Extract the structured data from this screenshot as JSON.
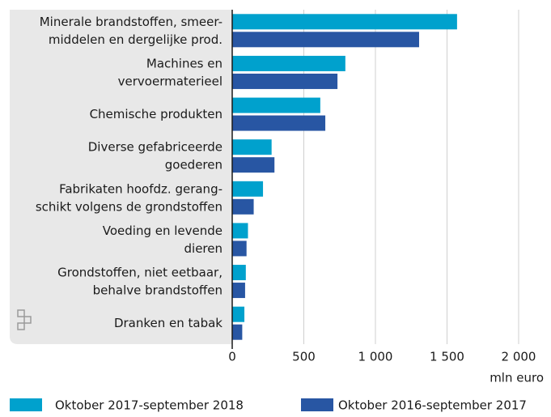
{
  "chart_data": {
    "type": "bar",
    "orientation": "horizontal",
    "categories": [
      [
        "Minerale brandstoffen, smeer-",
        "middelen en dergelijke prod."
      ],
      [
        "Machines en",
        "vervoermaterieel"
      ],
      [
        "Chemische produkten"
      ],
      [
        "Diverse gefabriceerde",
        "goederen"
      ],
      [
        "Fabrikaten hoofdz. gerang-",
        "schikt volgens de grondstoffen"
      ],
      [
        "Voeding en levende",
        "dieren"
      ],
      [
        "Grondstoffen, niet eetbaar,",
        "behalve brandstoffen"
      ],
      [
        "Dranken en tabak"
      ]
    ],
    "series": [
      {
        "name": "Oktober 2017-september 2018",
        "color": "#00a1cd",
        "values": [
          1570,
          790,
          615,
          275,
          215,
          110,
          95,
          85
        ]
      },
      {
        "name": "Oktober 2016-september 2017",
        "color": "#2856a3",
        "values": [
          1305,
          735,
          650,
          295,
          150,
          100,
          90,
          70
        ]
      }
    ],
    "xlim": [
      0,
      2000
    ],
    "xticks": [
      0,
      500,
      {
        "value": 1000,
        "label": "1 000"
      },
      {
        "value": 1500,
        "label": "1 500"
      },
      {
        "value": 2000,
        "label": "2 000"
      }
    ],
    "xlabel": "mln euro",
    "grid": true,
    "legend": "bottom"
  }
}
